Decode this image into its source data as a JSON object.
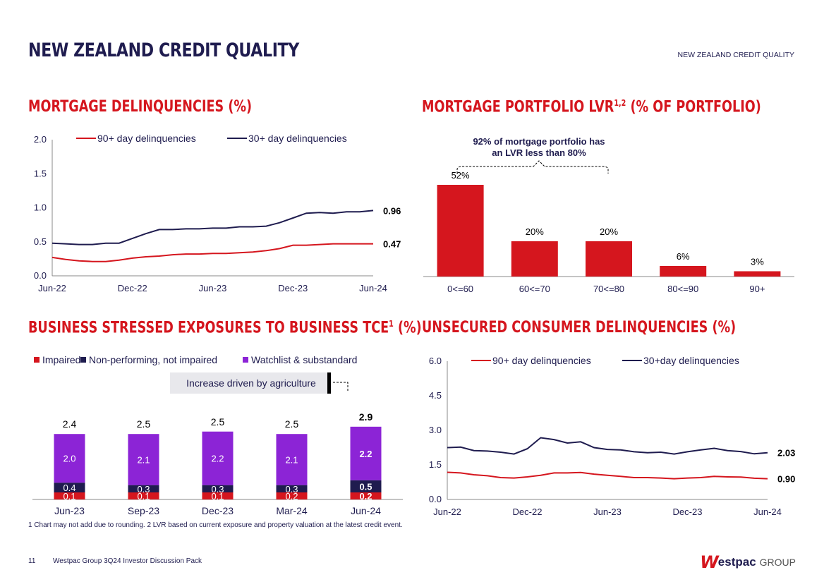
{
  "header": {
    "title": "NEW ZEALAND CREDIT QUALITY",
    "right_label": "NEW ZEALAND CREDIT QUALITY"
  },
  "footer": {
    "page_number": "11",
    "text": "Westpac Group 3Q24 Investor Discussion Pack",
    "footnote": "1 Chart may not add due to rounding. 2 LVR based on current exposure and property valuation at the latest credit event.",
    "logo_word": "estpac",
    "logo_group": "GROUP"
  },
  "colors": {
    "red": "#d5161e",
    "navy": "#1f1c4f",
    "purple": "#8c24d6"
  },
  "chart_data": [
    {
      "id": "mortgage_delinquencies",
      "type": "line",
      "title": "MORTGAGE DELINQUENCIES (%)",
      "x_ticks": [
        "Jun-22",
        "Dec-22",
        "Jun-23",
        "Dec-23",
        "Jun-24"
      ],
      "y_ticks": [
        "0.0",
        "0.5",
        "1.0",
        "1.5",
        "2.0"
      ],
      "ylim": [
        0,
        2.0
      ],
      "series": [
        {
          "name": "90+ day delinquencies",
          "color": "#d5161e",
          "end_label": "0.47",
          "values": [
            0.27,
            0.24,
            0.22,
            0.21,
            0.21,
            0.23,
            0.26,
            0.28,
            0.29,
            0.31,
            0.32,
            0.32,
            0.33,
            0.33,
            0.34,
            0.35,
            0.37,
            0.4,
            0.45,
            0.45,
            0.46,
            0.47,
            0.47,
            0.47,
            0.47
          ]
        },
        {
          "name": "30+ day delinquencies",
          "color": "#1f1c4f",
          "end_label": "0.96",
          "values": [
            0.48,
            0.47,
            0.46,
            0.46,
            0.48,
            0.48,
            0.55,
            0.62,
            0.68,
            0.68,
            0.69,
            0.69,
            0.7,
            0.7,
            0.72,
            0.72,
            0.73,
            0.78,
            0.85,
            0.92,
            0.93,
            0.92,
            0.94,
            0.94,
            0.96
          ]
        }
      ]
    },
    {
      "id": "mortgage_lvr",
      "type": "bar",
      "title_main": "MORTGAGE PORTFOLIO LVR",
      "title_sup": "1,2",
      "title_tail": " (% OF PORTFOLIO)",
      "categories": [
        "0<=60",
        "60<=70",
        "70<=80",
        "80<=90",
        "90+"
      ],
      "values": [
        52,
        20,
        20,
        6,
        3
      ],
      "labels": [
        "52%",
        "20%",
        "20%",
        "6%",
        "3%"
      ],
      "annotation": [
        "92% of mortgage portfolio has",
        "an LVR less than 80%"
      ]
    },
    {
      "id": "business_stressed",
      "type": "bar",
      "stacked": true,
      "title_main": "BUSINESS STRESSED EXPOSURES TO BUSINESS TCE",
      "title_sup": "1",
      "title_tail": " (%)",
      "categories": [
        "Jun-23",
        "Sep-23",
        "Dec-23",
        "Mar-24",
        "Jun-24"
      ],
      "totals": [
        "2.4",
        "2.5",
        "2.5",
        "2.5",
        "2.9"
      ],
      "series": [
        {
          "name": "Impaired",
          "color": "#d5161e",
          "values": [
            0.1,
            0.1,
            0.1,
            0.2,
            0.2
          ],
          "labels": [
            "0.1",
            "0.1",
            "0.1",
            "0.2",
            "0.2"
          ]
        },
        {
          "name": "Non-performing, not impaired",
          "color": "#1f1c4f",
          "values": [
            0.4,
            0.3,
            0.3,
            0.3,
            0.5
          ],
          "labels": [
            "0.4",
            "0.3",
            "0.3",
            "0.3",
            "0.5"
          ]
        },
        {
          "name": "Watchlist & substandard",
          "color": "#8c24d6",
          "values": [
            2.0,
            2.1,
            2.2,
            2.1,
            2.2
          ],
          "labels": [
            "2.0",
            "2.1",
            "2.2",
            "2.1",
            "2.2"
          ]
        }
      ],
      "callout": "Increase driven by agriculture",
      "ylim": [
        0,
        3.5
      ]
    },
    {
      "id": "unsecured_consumer",
      "type": "line",
      "title": "UNSECURED CONSUMER DELINQUENCIES (%)",
      "x_ticks": [
        "Jun-22",
        "Dec-22",
        "Jun-23",
        "Dec-23",
        "Jun-24"
      ],
      "y_ticks": [
        "0.0",
        "1.5",
        "3.0",
        "4.5",
        "6.0"
      ],
      "ylim": [
        0,
        6.0
      ],
      "series": [
        {
          "name": "90+ day delinquencies",
          "color": "#d5161e",
          "end_label": "0.90",
          "values": [
            1.18,
            1.15,
            1.07,
            1.03,
            0.95,
            0.93,
            0.98,
            1.05,
            1.15,
            1.15,
            1.17,
            1.1,
            1.05,
            1.0,
            0.95,
            0.95,
            0.93,
            0.9,
            0.93,
            0.95,
            1.0,
            0.98,
            0.97,
            0.92,
            0.9
          ]
        },
        {
          "name": "30+day delinquencies",
          "color": "#1f1c4f",
          "end_label": "2.03",
          "values": [
            2.25,
            2.27,
            2.12,
            2.1,
            2.05,
            1.97,
            2.2,
            2.68,
            2.6,
            2.45,
            2.5,
            2.25,
            2.17,
            2.15,
            2.07,
            2.03,
            2.05,
            1.97,
            2.07,
            2.15,
            2.22,
            2.12,
            2.08,
            1.98,
            2.03
          ]
        }
      ]
    }
  ]
}
